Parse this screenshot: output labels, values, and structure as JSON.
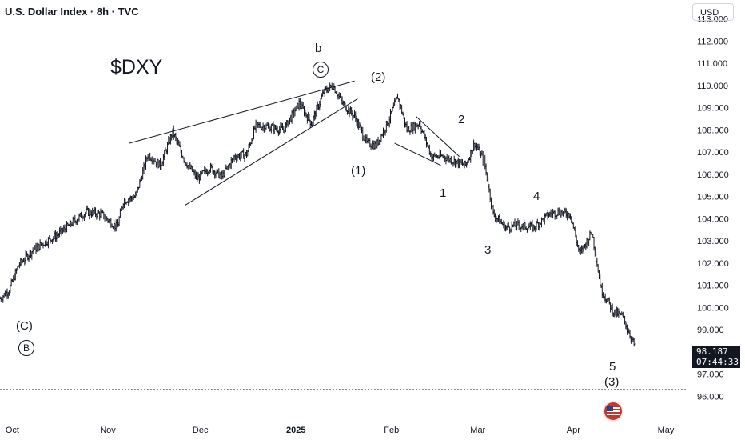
{
  "header": {
    "title": "U.S. Dollar Index · 8h · TVC",
    "currency_button": "USD"
  },
  "price_tag": {
    "price": "98.187",
    "countdown": "07:44:33",
    "price_value": 98.187
  },
  "annotations": {
    "ticker": "$DXY",
    "wave_labels": {
      "C_paren": "(C)",
      "B_circle": "B",
      "b": "b",
      "C_circle": "C",
      "w1_paren": "(1)",
      "w2_paren": "(2)",
      "w1": "1",
      "w2": "2",
      "w3": "3",
      "w4": "4",
      "w5": "5",
      "w3_paren": "(3)"
    }
  },
  "colors": {
    "candle": "#131722",
    "trendline": "#131722",
    "price_tag_bg": "#131722",
    "dashed_line": "#131722"
  },
  "chart_data": {
    "type": "bar",
    "subtype": "ohlc-price-bars",
    "title": "U.S. Dollar Index · 8h · TVC",
    "ylim": [
      95.4,
      113.2
    ],
    "y_ticks": [
      "113.000",
      "112.000",
      "111.000",
      "110.000",
      "109.000",
      "108.000",
      "107.000",
      "106.000",
      "105.000",
      "104.000",
      "103.000",
      "102.000",
      "101.000",
      "100.000",
      "99.000",
      "98.000",
      "97.000",
      "96.000"
    ],
    "x_ticks": [
      "Oct",
      "Nov",
      "Dec",
      "2025",
      "Feb",
      "Mar",
      "Apr",
      "May"
    ],
    "x_range": [
      "2024-09-27",
      "2025-05-08"
    ],
    "series": [
      {
        "values_by_date": [
          [
            "2024-09-27",
            100.4
          ],
          [
            "2024-09-30",
            100.8
          ],
          [
            "2024-10-03",
            101.9
          ],
          [
            "2024-10-07",
            102.5
          ],
          [
            "2024-10-11",
            102.9
          ],
          [
            "2024-10-16",
            103.3
          ],
          [
            "2024-10-22",
            104.0
          ],
          [
            "2024-10-25",
            104.3
          ],
          [
            "2024-10-30",
            104.2
          ],
          [
            "2024-11-04",
            103.6
          ],
          [
            "2024-11-06",
            104.8
          ],
          [
            "2024-11-10",
            105.0
          ],
          [
            "2024-11-14",
            106.9
          ],
          [
            "2024-11-18",
            106.4
          ],
          [
            "2024-11-22",
            107.9
          ],
          [
            "2024-11-26",
            106.6
          ],
          [
            "2024-11-30",
            105.8
          ],
          [
            "2024-12-04",
            106.3
          ],
          [
            "2024-12-08",
            105.9
          ],
          [
            "2024-12-12",
            106.8
          ],
          [
            "2024-12-16",
            106.9
          ],
          [
            "2024-12-19",
            108.2
          ],
          [
            "2024-12-24",
            108.1
          ],
          [
            "2024-12-28",
            108.0
          ],
          [
            "2025-01-02",
            109.2
          ],
          [
            "2025-01-06",
            108.3
          ],
          [
            "2025-01-10",
            109.7
          ],
          [
            "2025-01-13",
            110.0
          ],
          [
            "2025-01-16",
            109.2
          ],
          [
            "2025-01-20",
            108.6
          ],
          [
            "2025-01-24",
            107.4
          ],
          [
            "2025-01-27",
            107.3
          ],
          [
            "2025-01-31",
            108.4
          ],
          [
            "2025-02-03",
            109.5
          ],
          [
            "2025-02-06",
            108.0
          ],
          [
            "2025-02-10",
            108.3
          ],
          [
            "2025-02-14",
            106.8
          ],
          [
            "2025-02-18",
            106.8
          ],
          [
            "2025-02-21",
            106.6
          ],
          [
            "2025-02-25",
            106.4
          ],
          [
            "2025-02-28",
            107.4
          ],
          [
            "2025-03-03",
            106.6
          ],
          [
            "2025-03-06",
            104.2
          ],
          [
            "2025-03-10",
            103.6
          ],
          [
            "2025-03-14",
            103.7
          ],
          [
            "2025-03-19",
            103.6
          ],
          [
            "2025-03-24",
            104.2
          ],
          [
            "2025-03-27",
            104.3
          ],
          [
            "2025-03-31",
            104.2
          ],
          [
            "2025-04-03",
            102.4
          ],
          [
            "2025-04-07",
            103.4
          ],
          [
            "2025-04-10",
            100.8
          ],
          [
            "2025-04-14",
            99.8
          ],
          [
            "2025-04-17",
            99.6
          ],
          [
            "2025-04-21",
            98.2
          ]
        ]
      }
    ],
    "grid": false,
    "current_price_line": 96.3
  }
}
